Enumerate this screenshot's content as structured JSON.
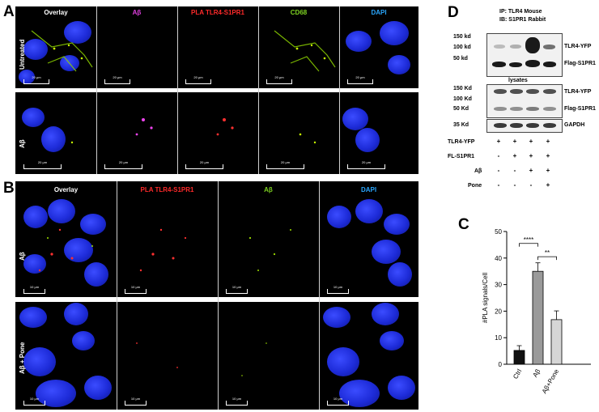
{
  "panel_letters": {
    "a": "A",
    "b": "B",
    "c": "C",
    "d": "D"
  },
  "panelA": {
    "columns": [
      "Overlay",
      "Aβ",
      "PLA TLR4-S1PR1",
      "CD68",
      "DAPI"
    ],
    "column_colors": [
      "#ffffff",
      "#e040e0",
      "#ff2a2a",
      "#7ed321",
      "#2aa7ff"
    ],
    "rows": [
      "Untreated",
      "Aβ"
    ],
    "scale_label": "20 μm"
  },
  "panelB": {
    "columns": [
      "Overlay",
      "PLA TLR4-S1PR1",
      "Aβ",
      "DAPI"
    ],
    "column_colors": [
      "#ffffff",
      "#ff2a2a",
      "#7ed321",
      "#2aa7ff"
    ],
    "rows": [
      "Aβ",
      "Aβ + Pone"
    ],
    "scale_label": "10 μm"
  },
  "panelD": {
    "ip_line": "IP: TLR4  Mouse",
    "ib_line": "IB: S1PR1 Rabbit",
    "ip_markers": [
      "150 kd",
      "100 kd",
      "50 kd"
    ],
    "ip_bands": [
      "TLR4-YFP",
      "Flag-S1PR1"
    ],
    "lysates_label": "lysates",
    "lys_markers": [
      "150 Kd",
      "100 Kd",
      "50 Kd"
    ],
    "lys_bands": [
      "TLR4-YFP",
      "Flag-S1PR1"
    ],
    "gapdh_marker": "35 Kd",
    "gapdh_label": "GAPDH",
    "conditions": [
      {
        "label": "TLR4-YFP",
        "signs": [
          "+",
          "+",
          "+",
          "+"
        ]
      },
      {
        "label": "FL-S1PR1",
        "signs": [
          "-",
          "+",
          "+",
          "+"
        ]
      },
      {
        "label": "Aβ",
        "signs": [
          "-",
          "-",
          "+",
          "+"
        ]
      },
      {
        "label": "Pone",
        "signs": [
          "-",
          "-",
          "-",
          "+"
        ]
      }
    ]
  },
  "chart_data": {
    "type": "bar",
    "categories": [
      "Ctrl",
      "Aβ",
      "Aβ+Pone"
    ],
    "values": [
      5.2,
      35,
      16.8
    ],
    "errors": [
      1.8,
      3.2,
      3.3
    ],
    "bar_colors": [
      "#111111",
      "#9a9a9a",
      "#d6d6d6"
    ],
    "ylabel": "#PLA signals/Cell",
    "ylim": [
      0,
      50
    ],
    "yticks": [
      0,
      10,
      20,
      30,
      40,
      50
    ],
    "significance": [
      {
        "from": 0,
        "to": 1,
        "label": "****"
      },
      {
        "from": 1,
        "to": 2,
        "label": "**"
      }
    ]
  }
}
